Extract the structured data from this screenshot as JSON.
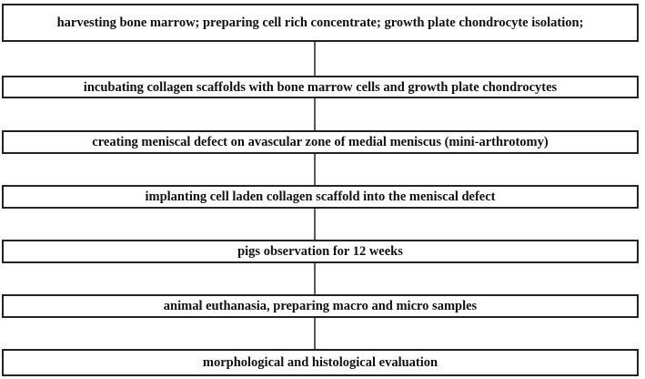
{
  "nodes": [
    {
      "label": "harvesting bone marrow; preparing cell rich concentrate; growth plate chondrocyte isolation;"
    },
    {
      "label": "incubating collagen scaffolds with bone marrow cells and growth plate chondrocytes"
    },
    {
      "label": "creating meniscal defect on avascular zone of medial meniscus (mini-arthrotomy)"
    },
    {
      "label": "implanting cell laden collagen scaffold into the meniscal defect"
    },
    {
      "label": "pigs observation for 12 weeks"
    },
    {
      "label": "animal euthanasia, preparing macro and micro samples"
    },
    {
      "label": "morphological and histological evaluation"
    }
  ]
}
